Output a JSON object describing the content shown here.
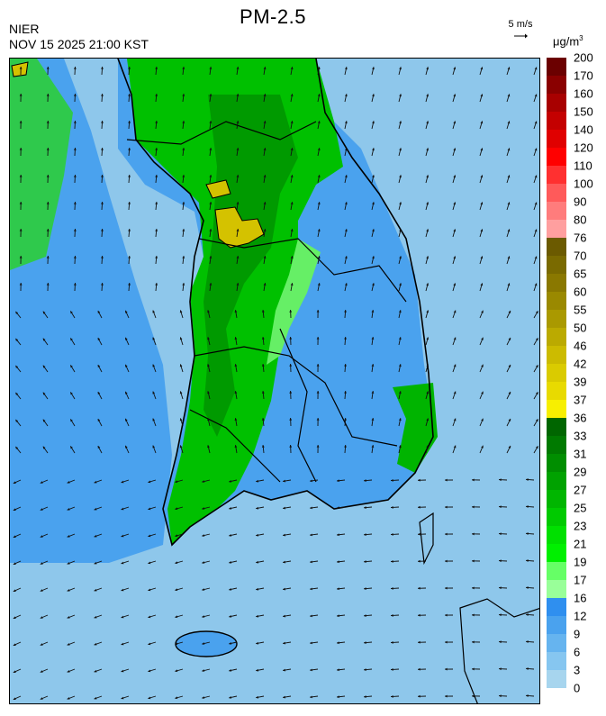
{
  "header": {
    "title": "PM-2.5",
    "agency": "NIER",
    "datetime": "NOV 15 2025 21:00 KST",
    "wind_reference": "5 m/s",
    "unit_base": "μg/m",
    "unit_exp": "3"
  },
  "legend": {
    "labels": [
      "200",
      "170",
      "160",
      "150",
      "140",
      "120",
      "110",
      "100",
      "90",
      "80",
      "76",
      "70",
      "65",
      "60",
      "55",
      "50",
      "46",
      "42",
      "39",
      "37",
      "36",
      "33",
      "31",
      "29",
      "27",
      "25",
      "23",
      "21",
      "19",
      "17",
      "16",
      "12",
      "9",
      "6",
      "3",
      "0"
    ],
    "colors": [
      "#6b0000",
      "#8a0000",
      "#a80000",
      "#c40000",
      "#e00000",
      "#ff0000",
      "#ff3030",
      "#ff5a5a",
      "#ff7c7c",
      "#ff9f9f",
      "#6b5a00",
      "#7a6a00",
      "#8a7800",
      "#9a8900",
      "#aa9900",
      "#bbaa00",
      "#ccbb00",
      "#dacb00",
      "#e8da00",
      "#f7ef00",
      "#006600",
      "#007a00",
      "#008e00",
      "#00a200",
      "#00b600",
      "#00ca00",
      "#00e000",
      "#00f000",
      "#66ff66",
      "#99ff99",
      "#2f8fef",
      "#4aa2ee",
      "#66b4ef",
      "#86c6f0",
      "#a7d5ee"
    ]
  },
  "map_legend_colors": {
    "sea": "#8ec7eb",
    "low": "#4aa2ee",
    "moderate": "#00c400",
    "high": "#d4c200"
  }
}
